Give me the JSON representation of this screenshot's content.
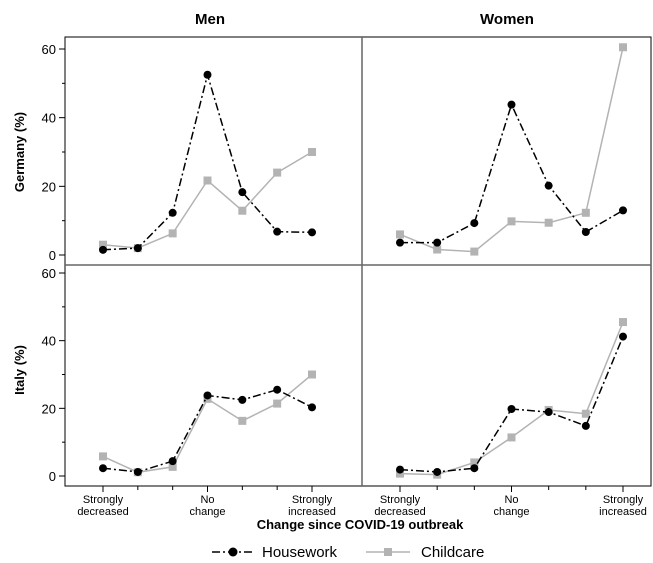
{
  "chart_data": {
    "type": "line",
    "xlabel": "Change since COVID-19 outbreak",
    "column_titles": [
      "Men",
      "Women"
    ],
    "row_labels": [
      "Germany (%)",
      "Italy (%)"
    ],
    "x_tick_labels": [
      [
        "Strongly",
        "decreased"
      ],
      [
        "No",
        "change"
      ],
      [
        "Strongly",
        "increased"
      ]
    ],
    "x_categories": [
      1,
      2,
      3,
      4,
      5,
      6,
      7
    ],
    "ylim": [
      0,
      60
    ],
    "yticks": [
      "0",
      "20",
      "40",
      "60"
    ],
    "legend": [
      "Housework",
      "Childcare"
    ],
    "colors": {
      "housework": "#000000",
      "childcare": "#b3b3b3"
    },
    "panels": [
      {
        "row": "Germany (%)",
        "col": "Men",
        "series": [
          {
            "name": "Housework",
            "values": [
              1.5,
              2.0,
              12.3,
              52.5,
              18.3,
              6.8,
              6.6
            ]
          },
          {
            "name": "Childcare",
            "values": [
              3.0,
              2.0,
              6.3,
              21.7,
              12.9,
              24.0,
              30.0
            ]
          }
        ]
      },
      {
        "row": "Germany (%)",
        "col": "Women",
        "series": [
          {
            "name": "Housework",
            "values": [
              3.6,
              3.6,
              9.3,
              43.8,
              20.2,
              6.7,
              13.0
            ]
          },
          {
            "name": "Childcare",
            "values": [
              6.0,
              1.6,
              1.0,
              9.8,
              9.4,
              12.3,
              60.5
            ]
          }
        ]
      },
      {
        "row": "Italy (%)",
        "col": "Men",
        "series": [
          {
            "name": "Housework",
            "values": [
              2.3,
              1.2,
              4.4,
              23.8,
              22.5,
              25.5,
              20.3
            ]
          },
          {
            "name": "Childcare",
            "values": [
              5.8,
              1.1,
              2.7,
              22.8,
              16.3,
              21.4,
              30.0
            ]
          }
        ]
      },
      {
        "row": "Italy (%)",
        "col": "Women",
        "series": [
          {
            "name": "Housework",
            "values": [
              1.9,
              1.2,
              2.3,
              19.8,
              18.9,
              14.8,
              41.2
            ]
          },
          {
            "name": "Childcare",
            "values": [
              0.7,
              0.4,
              4.0,
              11.4,
              19.5,
              18.4,
              45.5
            ]
          }
        ]
      }
    ]
  }
}
